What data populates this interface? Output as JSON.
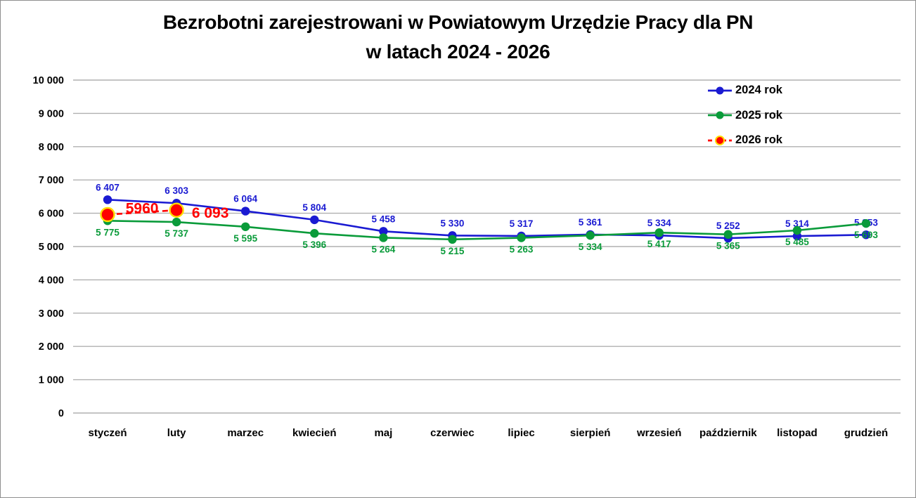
{
  "title": {
    "line1": "Bezrobotni zarejestrowani w Powiatowym Urzędzie Pracy dla PN",
    "line2": "w latach 2024 - 2026"
  },
  "chart_data": {
    "type": "line",
    "title": "Bezrobotni zarejestrowani w Powiatowym Urzędzie Pracy dla PN w latach 2024 - 2026",
    "categories": [
      "styczeń",
      "luty",
      "marzec",
      "kwiecień",
      "maj",
      "czerwiec",
      "lipiec",
      "sierpień",
      "wrzesień",
      "październik",
      "listopad",
      "grudzień"
    ],
    "series": [
      {
        "name": "2024 rok",
        "color": "#1a1ad2",
        "line_style": "solid",
        "marker": "circle",
        "label_position": "above",
        "values": [
          6407,
          6303,
          6064,
          5804,
          5458,
          5330,
          5317,
          5361,
          5334,
          5252,
          5314,
          5353
        ],
        "labels": [
          "6 407",
          "6 303",
          "6 064",
          "5 804",
          "5 458",
          "5 330",
          "5 317",
          "5 361",
          "5 334",
          "5 252",
          "5 314",
          "5 353"
        ]
      },
      {
        "name": "2025 rok",
        "color": "#0a9b3a",
        "line_style": "solid",
        "marker": "circle",
        "label_position": "below",
        "values": [
          5775,
          5737,
          5595,
          5396,
          5264,
          5215,
          5263,
          5334,
          5417,
          5365,
          5485,
          5693
        ],
        "labels": [
          "5 775",
          "5 737",
          "5 595",
          "5 396",
          "5 264",
          "5 215",
          "5 263",
          "5 334",
          "5 417",
          "5 365",
          "5 485",
          "5 693"
        ]
      },
      {
        "name": "2026 rok",
        "color": "#ff0000",
        "marker_ring_color": "#ffdd00",
        "line_style": "dashed",
        "marker": "circle-large",
        "label_position": "inline",
        "values": [
          5960,
          6093,
          null,
          null,
          null,
          null,
          null,
          null,
          null,
          null,
          null,
          null
        ],
        "labels": [
          "5960",
          "6 093",
          null,
          null,
          null,
          null,
          null,
          null,
          null,
          null,
          null,
          null
        ]
      }
    ],
    "xlabel": "",
    "ylabel": "",
    "ylim": [
      0,
      10000
    ],
    "ytick_step": 1000,
    "ytick_labels": [
      "0",
      "1 000",
      "2 000",
      "3 000",
      "4 000",
      "5 000",
      "6 000",
      "7 000",
      "8 000",
      "9 000",
      "10 000"
    ],
    "grid": true,
    "grid_color": "#b0b0b0",
    "legend_position": "top-right"
  }
}
